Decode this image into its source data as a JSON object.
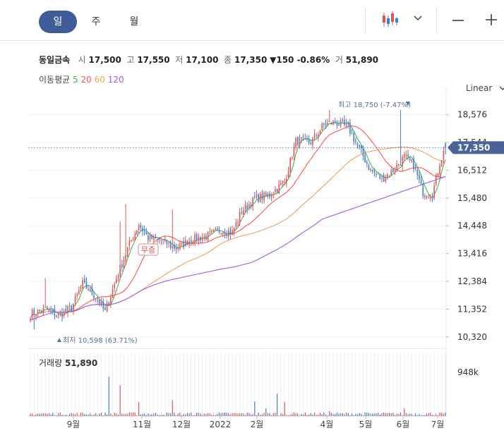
{
  "toolbar": {
    "periods": [
      "일",
      "주",
      "월"
    ],
    "active_period": "일",
    "chart_type_icon": "candlestick-icon",
    "dropdown_icon": "chevron-down-icon",
    "minus_icon": "zoom-out-icon",
    "plus_icon": "zoom-in-icon"
  },
  "stock": {
    "name": "동일금속",
    "open_label": "시",
    "open": "17,500",
    "high_label": "고",
    "high": "17,550",
    "low_label": "저",
    "low": "17,100",
    "close_label": "종",
    "close": "17,350",
    "change": "▼150 -0.86%",
    "volume_label": "거",
    "volume": "51,890"
  },
  "ma": {
    "label": "이동평균",
    "periods": [
      "5",
      "20",
      "60",
      "120"
    ],
    "colors": [
      "#4caf50",
      "#ff5252",
      "#f5a05a",
      "#9b5de5"
    ]
  },
  "scale_mode": "Linear",
  "colors": {
    "up": "#e05555",
    "down": "#3f7fd0",
    "accent": "#3e5d99",
    "badge": "#4a6499"
  },
  "chart_data": {
    "type": "candlestick",
    "yticks": [
      "18,576",
      "17,544",
      "16,512",
      "15,480",
      "14,448",
      "13,416",
      "12,384",
      "11,352",
      "10,320"
    ],
    "ytick_values": [
      18576,
      17544,
      16512,
      15480,
      14448,
      13416,
      12384,
      11352,
      10320
    ],
    "ylim": [
      10000,
      19300
    ],
    "xlabels": [
      "9월",
      "11월",
      "12월",
      "2022",
      "2월",
      "4월",
      "5월",
      "6월",
      "7월"
    ],
    "current_price": "17,350",
    "high_annotation": "최고 18,750 (-7.47%)",
    "low_annotation": "최저 10,598 (63.71%)",
    "event_badge": "무증",
    "volume_label": "거래량",
    "volume_value": "51,890",
    "volume_tick": "948k",
    "key_points": [
      [
        0,
        11150
      ],
      [
        8,
        11350
      ],
      [
        15,
        11100
      ],
      [
        22,
        11400
      ],
      [
        28,
        12300
      ],
      [
        35,
        11800
      ],
      [
        40,
        11250
      ],
      [
        46,
        12500
      ],
      [
        52,
        13600
      ],
      [
        58,
        14500
      ],
      [
        63,
        14000
      ],
      [
        70,
        13900
      ],
      [
        78,
        13600
      ],
      [
        86,
        13950
      ],
      [
        94,
        14050
      ],
      [
        102,
        14300
      ],
      [
        108,
        14200
      ],
      [
        113,
        15000
      ],
      [
        120,
        15450
      ],
      [
        128,
        15600
      ],
      [
        136,
        16100
      ],
      [
        142,
        17600
      ],
      [
        150,
        17550
      ],
      [
        157,
        18200
      ],
      [
        163,
        18300
      ],
      [
        170,
        18100
      ],
      [
        176,
        17300
      ],
      [
        182,
        16500
      ],
      [
        188,
        16200
      ],
      [
        194,
        16500
      ],
      [
        200,
        17000
      ],
      [
        205,
        16700
      ],
      [
        210,
        15700
      ],
      [
        215,
        15600
      ],
      [
        219,
        16800
      ],
      [
        222,
        17350
      ]
    ],
    "ma_periods": [
      5,
      20,
      60,
      120
    ]
  }
}
